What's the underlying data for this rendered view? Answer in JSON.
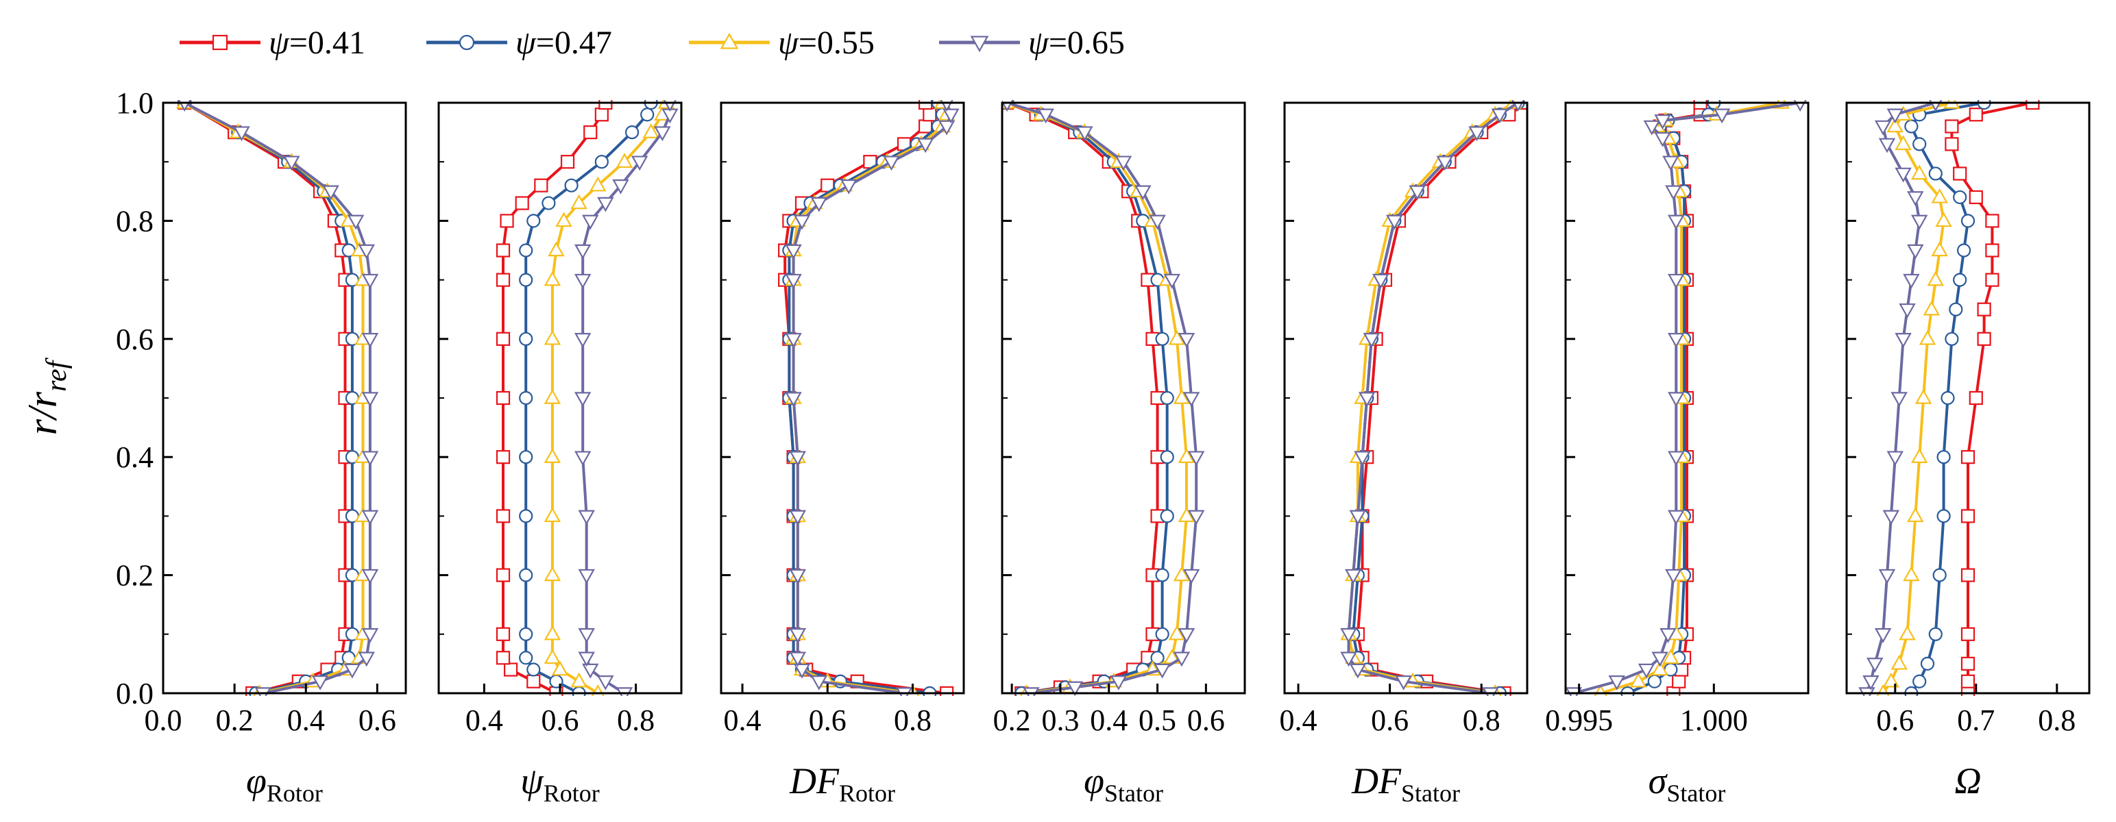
{
  "chart_data": {
    "type": "line",
    "y_label": "r/r_ref",
    "y_label_main": "r/r",
    "y_label_sub": "ref",
    "ylim": [
      0.0,
      1.0
    ],
    "y_ticks": [
      0.0,
      0.2,
      0.4,
      0.6,
      0.8,
      1.0
    ],
    "y_tick_labels": [
      "0.0",
      "0.2",
      "0.4",
      "0.6",
      "0.8",
      "1.0"
    ],
    "grid": false,
    "legend_position": "top-left",
    "legend": [
      {
        "name": "ψ=0.41",
        "symbol": "ψ",
        "eq": "=0.41",
        "color": "#e8141b",
        "marker": "square"
      },
      {
        "name": "ψ=0.47",
        "symbol": "ψ",
        "eq": "=0.47",
        "color": "#2a5b9a",
        "marker": "circle"
      },
      {
        "name": "ψ=0.55",
        "symbol": "ψ",
        "eq": "=0.55",
        "color": "#f7bf1a",
        "marker": "triangle-up"
      },
      {
        "name": "ψ=0.65",
        "symbol": "ψ",
        "eq": "=0.65",
        "color": "#6c6aa2",
        "marker": "triangle-down"
      }
    ],
    "panels": [
      {
        "id": "phi-rotor",
        "xlabel": "φ_Rotor",
        "xlabel_main": "φ",
        "xlabel_sub": "Rotor",
        "xlim": [
          0.0,
          0.68
        ],
        "x_ticks": [
          0.0,
          0.2,
          0.4,
          0.6
        ],
        "x_tick_labels": [
          "0.0",
          "0.2",
          "0.4",
          "0.6"
        ],
        "y": [
          0.0,
          0.02,
          0.04,
          0.06,
          0.1,
          0.2,
          0.3,
          0.4,
          0.5,
          0.6,
          0.7,
          0.75,
          0.8,
          0.85,
          0.9,
          0.95,
          1.0
        ],
        "series": [
          {
            "x": [
              0.25,
              0.38,
              0.46,
              0.5,
              0.51,
              0.51,
              0.51,
              0.51,
              0.51,
              0.51,
              0.51,
              0.5,
              0.48,
              0.44,
              0.34,
              0.2,
              0.06
            ]
          },
          {
            "x": [
              0.26,
              0.4,
              0.49,
              0.52,
              0.53,
              0.53,
              0.53,
              0.53,
              0.53,
              0.53,
              0.53,
              0.52,
              0.5,
              0.45,
              0.35,
              0.21,
              0.06
            ]
          },
          {
            "x": [
              0.27,
              0.42,
              0.51,
              0.55,
              0.56,
              0.56,
              0.56,
              0.56,
              0.56,
              0.56,
              0.56,
              0.55,
              0.52,
              0.46,
              0.36,
              0.21,
              0.06
            ]
          },
          {
            "x": [
              0.28,
              0.44,
              0.53,
              0.57,
              0.58,
              0.58,
              0.58,
              0.58,
              0.58,
              0.58,
              0.58,
              0.57,
              0.54,
              0.47,
              0.36,
              0.22,
              0.06
            ]
          }
        ]
      },
      {
        "id": "psi-rotor",
        "xlabel": "ψ_Rotor",
        "xlabel_main": "ψ",
        "xlabel_sub": "Rotor",
        "xlim": [
          0.28,
          0.92
        ],
        "x_ticks": [
          0.4,
          0.6,
          0.8
        ],
        "x_tick_labels": [
          "0.4",
          "0.6",
          "0.8"
        ],
        "y": [
          0.0,
          0.02,
          0.04,
          0.06,
          0.1,
          0.2,
          0.3,
          0.4,
          0.5,
          0.6,
          0.7,
          0.75,
          0.8,
          0.83,
          0.86,
          0.9,
          0.95,
          0.98,
          1.0
        ],
        "series": [
          {
            "x": [
              0.59,
              0.53,
              0.47,
              0.45,
              0.45,
              0.45,
              0.45,
              0.45,
              0.45,
              0.45,
              0.45,
              0.45,
              0.46,
              0.5,
              0.55,
              0.62,
              0.68,
              0.71,
              0.72
            ]
          },
          {
            "x": [
              0.65,
              0.59,
              0.53,
              0.51,
              0.51,
              0.51,
              0.51,
              0.51,
              0.51,
              0.51,
              0.51,
              0.51,
              0.53,
              0.57,
              0.63,
              0.71,
              0.79,
              0.83,
              0.84
            ]
          },
          {
            "x": [
              0.7,
              0.65,
              0.6,
              0.58,
              0.58,
              0.58,
              0.58,
              0.58,
              0.58,
              0.58,
              0.58,
              0.59,
              0.61,
              0.65,
              0.7,
              0.77,
              0.84,
              0.87,
              0.88
            ]
          },
          {
            "x": [
              0.77,
              0.72,
              0.68,
              0.67,
              0.67,
              0.67,
              0.67,
              0.66,
              0.66,
              0.66,
              0.66,
              0.66,
              0.68,
              0.72,
              0.76,
              0.81,
              0.87,
              0.89,
              0.89
            ]
          }
        ]
      },
      {
        "id": "df-rotor",
        "xlabel": "DF_Rotor",
        "xlabel_main": "DF",
        "xlabel_sub": "Rotor",
        "xlim": [
          0.35,
          0.92
        ],
        "x_ticks": [
          0.4,
          0.6,
          0.8
        ],
        "x_tick_labels": [
          "0.4",
          "0.6",
          "0.8"
        ],
        "y": [
          0.0,
          0.02,
          0.04,
          0.06,
          0.1,
          0.2,
          0.3,
          0.4,
          0.5,
          0.6,
          0.7,
          0.75,
          0.8,
          0.83,
          0.86,
          0.9,
          0.93,
          0.96,
          0.98,
          1.0
        ],
        "series": [
          {
            "x": [
              0.88,
              0.67,
              0.55,
              0.52,
              0.52,
              0.52,
              0.52,
              0.52,
              0.51,
              0.51,
              0.5,
              0.5,
              0.51,
              0.54,
              0.6,
              0.7,
              0.78,
              0.83,
              0.84,
              0.83
            ]
          },
          {
            "x": [
              0.84,
              0.63,
              0.54,
              0.52,
              0.52,
              0.52,
              0.52,
              0.52,
              0.51,
              0.51,
              0.51,
              0.51,
              0.52,
              0.56,
              0.63,
              0.73,
              0.81,
              0.86,
              0.87,
              0.86
            ]
          },
          {
            "x": [
              0.8,
              0.6,
              0.54,
              0.53,
              0.53,
              0.53,
              0.53,
              0.53,
              0.52,
              0.52,
              0.52,
              0.52,
              0.53,
              0.57,
              0.64,
              0.74,
              0.82,
              0.87,
              0.88,
              0.87
            ]
          },
          {
            "x": [
              0.78,
              0.58,
              0.54,
              0.53,
              0.53,
              0.53,
              0.53,
              0.53,
              0.52,
              0.52,
              0.52,
              0.52,
              0.54,
              0.58,
              0.65,
              0.75,
              0.83,
              0.88,
              0.89,
              0.88
            ]
          }
        ]
      },
      {
        "id": "phi-stator",
        "xlabel": "φ_Stator",
        "xlabel_main": "φ",
        "xlabel_sub": "Stator",
        "xlim": [
          0.18,
          0.68
        ],
        "x_ticks": [
          0.2,
          0.3,
          0.4,
          0.5,
          0.6
        ],
        "x_tick_labels": [
          "0.2",
          "0.3",
          "0.4",
          "0.5",
          "0.6"
        ],
        "y": [
          0.0,
          0.01,
          0.02,
          0.04,
          0.06,
          0.1,
          0.2,
          0.3,
          0.4,
          0.5,
          0.6,
          0.7,
          0.8,
          0.85,
          0.9,
          0.95,
          0.98,
          1.0
        ],
        "series": [
          {
            "x": [
              0.22,
              0.3,
              0.38,
              0.45,
              0.48,
              0.49,
              0.49,
              0.5,
              0.5,
              0.5,
              0.49,
              0.48,
              0.46,
              0.44,
              0.4,
              0.33,
              0.25,
              0.19
            ]
          },
          {
            "x": [
              0.22,
              0.31,
              0.39,
              0.47,
              0.5,
              0.51,
              0.51,
              0.52,
              0.52,
              0.52,
              0.51,
              0.5,
              0.47,
              0.45,
              0.41,
              0.34,
              0.26,
              0.19
            ]
          },
          {
            "x": [
              0.23,
              0.32,
              0.41,
              0.49,
              0.53,
              0.54,
              0.55,
              0.56,
              0.56,
              0.55,
              0.54,
              0.52,
              0.49,
              0.46,
              0.42,
              0.35,
              0.26,
              0.19
            ]
          },
          {
            "x": [
              0.24,
              0.33,
              0.42,
              0.51,
              0.55,
              0.56,
              0.57,
              0.58,
              0.58,
              0.57,
              0.56,
              0.53,
              0.5,
              0.47,
              0.43,
              0.35,
              0.27,
              0.19
            ]
          }
        ]
      },
      {
        "id": "df-stator",
        "xlabel": "DF_Stator",
        "xlabel_main": "DF",
        "xlabel_sub": "Stator",
        "xlim": [
          0.37,
          0.9
        ],
        "x_ticks": [
          0.4,
          0.6,
          0.8
        ],
        "x_tick_labels": [
          "0.4",
          "0.6",
          "0.8"
        ],
        "y": [
          0.0,
          0.02,
          0.04,
          0.06,
          0.1,
          0.2,
          0.3,
          0.4,
          0.5,
          0.6,
          0.7,
          0.8,
          0.85,
          0.9,
          0.95,
          0.98,
          1.0
        ],
        "series": [
          {
            "x": [
              0.85,
              0.68,
              0.56,
              0.54,
              0.53,
              0.54,
              0.54,
              0.55,
              0.56,
              0.57,
              0.59,
              0.62,
              0.67,
              0.73,
              0.8,
              0.86,
              0.9
            ]
          },
          {
            "x": [
              0.84,
              0.66,
              0.55,
              0.53,
              0.52,
              0.53,
              0.54,
              0.54,
              0.55,
              0.56,
              0.58,
              0.61,
              0.66,
              0.72,
              0.79,
              0.84,
              0.88
            ]
          },
          {
            "x": [
              0.83,
              0.65,
              0.54,
              0.52,
              0.51,
              0.52,
              0.53,
              0.53,
              0.54,
              0.55,
              0.57,
              0.6,
              0.65,
              0.71,
              0.78,
              0.83,
              0.87
            ]
          },
          {
            "x": [
              0.82,
              0.63,
              0.53,
              0.51,
              0.51,
              0.52,
              0.53,
              0.54,
              0.55,
              0.56,
              0.58,
              0.61,
              0.66,
              0.72,
              0.79,
              0.84,
              0.88
            ]
          }
        ]
      },
      {
        "id": "sigma-stator",
        "xlabel": "σ_Stator",
        "xlabel_main": "σ",
        "xlabel_sub": "Stator",
        "xlim": [
          0.9945,
          1.0035
        ],
        "x_ticks": [
          0.995,
          1.0
        ],
        "x_tick_labels": [
          "0.995",
          "1.000"
        ],
        "y": [
          0.0,
          0.02,
          0.04,
          0.06,
          0.1,
          0.2,
          0.3,
          0.4,
          0.5,
          0.6,
          0.7,
          0.8,
          0.85,
          0.9,
          0.94,
          0.96,
          0.97,
          0.98,
          1.0
        ],
        "series": [
          {
            "x": [
              0.9985,
              0.9987,
              0.9988,
              0.9989,
              0.999,
              0.999,
              0.999,
              0.999,
              0.999,
              0.999,
              0.999,
              0.999,
              0.9989,
              0.9988,
              0.9985,
              0.998,
              0.9982,
              0.9995,
              0.9995
            ]
          },
          {
            "x": [
              0.9968,
              0.9978,
              0.9984,
              0.9987,
              0.9988,
              0.9989,
              0.9989,
              0.9989,
              0.9989,
              0.9989,
              0.9989,
              0.9989,
              0.9989,
              0.9988,
              0.9985,
              0.998,
              0.9983,
              0.9998,
              1.0
            ]
          },
          {
            "x": [
              0.9958,
              0.9972,
              0.998,
              0.9984,
              0.9986,
              0.9987,
              0.9988,
              0.9988,
              0.9988,
              0.9988,
              0.9988,
              0.9988,
              0.9987,
              0.9986,
              0.9983,
              0.9979,
              0.9982,
              1.0001,
              1.0025
            ]
          },
          {
            "x": [
              0.9948,
              0.9964,
              0.9975,
              0.998,
              0.9983,
              0.9985,
              0.9986,
              0.9986,
              0.9986,
              0.9986,
              0.9986,
              0.9986,
              0.9985,
              0.9984,
              0.9981,
              0.9977,
              0.9981,
              1.0003,
              1.0032
            ]
          }
        ]
      },
      {
        "id": "omega",
        "xlabel": "Ω",
        "xlabel_main": "Ω",
        "xlabel_sub": "",
        "xlim": [
          0.54,
          0.84
        ],
        "x_ticks": [
          0.6,
          0.7,
          0.8
        ],
        "x_tick_labels": [
          "0.6",
          "0.7",
          "0.8"
        ],
        "y": [
          0.0,
          0.02,
          0.05,
          0.1,
          0.2,
          0.3,
          0.4,
          0.5,
          0.6,
          0.65,
          0.7,
          0.75,
          0.8,
          0.84,
          0.88,
          0.93,
          0.96,
          0.98,
          1.0
        ],
        "series": [
          {
            "x": [
              0.69,
              0.69,
              0.69,
              0.69,
              0.69,
              0.69,
              0.69,
              0.7,
              0.71,
              0.71,
              0.72,
              0.72,
              0.72,
              0.7,
              0.68,
              0.67,
              0.67,
              0.7,
              0.77
            ]
          },
          {
            "x": [
              0.62,
              0.63,
              0.64,
              0.65,
              0.655,
              0.66,
              0.66,
              0.665,
              0.67,
              0.675,
              0.68,
              0.685,
              0.69,
              0.68,
              0.65,
              0.63,
              0.62,
              0.63,
              0.71
            ]
          },
          {
            "x": [
              0.585,
              0.595,
              0.605,
              0.615,
              0.62,
              0.625,
              0.63,
              0.635,
              0.64,
              0.645,
              0.65,
              0.655,
              0.66,
              0.655,
              0.63,
              0.61,
              0.6,
              0.61,
              0.67
            ]
          },
          {
            "x": [
              0.565,
              0.57,
              0.575,
              0.585,
              0.59,
              0.595,
              0.6,
              0.605,
              0.61,
              0.615,
              0.62,
              0.625,
              0.63,
              0.625,
              0.61,
              0.59,
              0.585,
              0.6,
              0.65
            ]
          }
        ]
      }
    ]
  }
}
